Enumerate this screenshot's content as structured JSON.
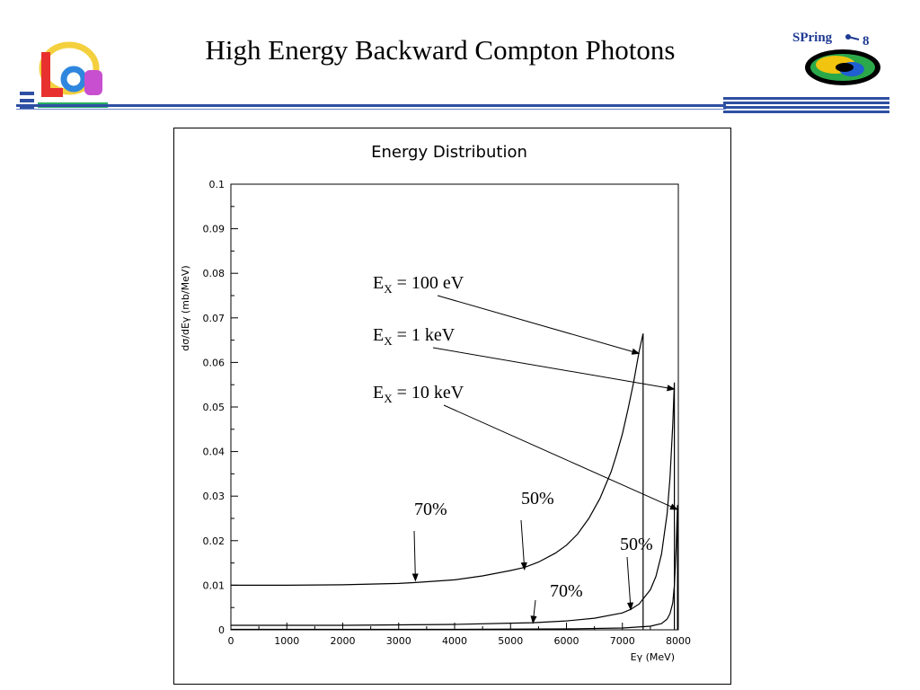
{
  "slide": {
    "title": "High Energy Backward Compton Photons",
    "logo_right_text": "SPring",
    "logo_right_number": "8"
  },
  "chart_data": {
    "type": "line",
    "title": "Energy Distribution",
    "xlabel": "Eγ (MeV)",
    "ylabel": "dσ/dEγ (mb/MeV)",
    "xlim": [
      0,
      8000
    ],
    "ylim": [
      0,
      0.1
    ],
    "x_ticks": [
      "0",
      "1000",
      "2000",
      "3000",
      "4000",
      "5000",
      "6000",
      "7000",
      "8000"
    ],
    "y_ticks": [
      "0",
      "0.01",
      "0.02",
      "0.03",
      "0.04",
      "0.05",
      "0.06",
      "0.07",
      "0.08",
      "0.09",
      "0.1"
    ],
    "grid": false,
    "series": [
      {
        "name": "EX = 100 eV",
        "edge": 7370,
        "x": [
          0,
          1000,
          2000,
          3000,
          3300,
          4000,
          4500,
          5000,
          5250,
          5500,
          5800,
          6000,
          6200,
          6400,
          6600,
          6800,
          6900,
          7000,
          7100,
          7200,
          7300,
          7370
        ],
        "y": [
          0.01,
          0.01,
          0.0101,
          0.0104,
          0.0106,
          0.0112,
          0.0121,
          0.0133,
          0.014,
          0.0152,
          0.0172,
          0.019,
          0.0215,
          0.025,
          0.0295,
          0.0355,
          0.0395,
          0.044,
          0.0495,
          0.0555,
          0.0625,
          0.0665
        ]
      },
      {
        "name": "EX = 1 keV",
        "edge": 7930,
        "x": [
          0,
          1000,
          2000,
          3000,
          4000,
          5000,
          5400,
          6000,
          6500,
          7000,
          7150,
          7300,
          7500,
          7600,
          7700,
          7800,
          7850,
          7900,
          7930
        ],
        "y": [
          0.001,
          0.001,
          0.001,
          0.0011,
          0.0012,
          0.0015,
          0.0016,
          0.002,
          0.0026,
          0.0038,
          0.0046,
          0.0058,
          0.009,
          0.012,
          0.017,
          0.026,
          0.034,
          0.046,
          0.0555
        ]
      },
      {
        "name": "EX = 10 keV",
        "edge": 7985,
        "x": [
          0,
          2000,
          4000,
          6000,
          7000,
          7500,
          7700,
          7800,
          7850,
          7900,
          7930,
          7960,
          7985
        ],
        "y": [
          0.0001,
          0.0001,
          0.0001,
          0.0002,
          0.0004,
          0.0008,
          0.0014,
          0.0024,
          0.0036,
          0.006,
          0.01,
          0.018,
          0.028
        ]
      }
    ],
    "annotations": [
      {
        "label_main": "E",
        "label_sub": "X",
        "label_rest": " = 100 eV",
        "target": [
          7300,
          0.062
        ]
      },
      {
        "label_main": "E",
        "label_sub": "X",
        "label_rest": " = 1 keV",
        "target": [
          7930,
          0.054
        ]
      },
      {
        "label_main": "E",
        "label_sub": "X",
        "label_rest": " = 10 keV",
        "target": [
          7985,
          0.027
        ]
      },
      {
        "text": "70%",
        "target": [
          3300,
          0.011
        ]
      },
      {
        "text": "50%",
        "target": [
          5250,
          0.0135
        ]
      },
      {
        "text": "50%",
        "target": [
          7150,
          0.0045
        ]
      },
      {
        "text": "70%",
        "target": [
          5400,
          0.0015
        ]
      }
    ]
  }
}
